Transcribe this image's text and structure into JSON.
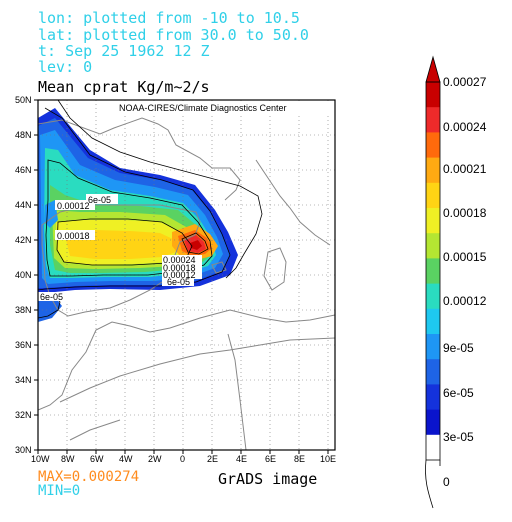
{
  "header": {
    "lon_line": "lon: plotted from -10 to 10.5",
    "lat_line": "lat: plotted from 30.0 to 50.0",
    "time_line": "t: Sep 25 1962 12 Z",
    "lev_line": "lev: 0"
  },
  "map": {
    "title": "Mean cprat Kg/m~2/s",
    "credit": "NOAA-CIRES/Climate Diagnostics Center",
    "lon_ticks": [
      "10W",
      "8W",
      "6W",
      "4W",
      "2W",
      "0",
      "2E",
      "4E",
      "6E",
      "8E",
      "10E"
    ],
    "lat_ticks": [
      "50N",
      "48N",
      "46N",
      "44N",
      "42N",
      "40N",
      "38N",
      "36N",
      "34N",
      "32N",
      "30N"
    ],
    "contour_labels": [
      "6e-05",
      "0.00012",
      "0.00018",
      "0.00024",
      "0.00018",
      "0.00012",
      "6e-05",
      "6e-05"
    ]
  },
  "colorbar": {
    "labels": [
      "0.00027",
      "0.00024",
      "0.00021",
      "0.00018",
      "0.00015",
      "0.00012",
      "9e-05",
      "6e-05",
      "3e-05",
      "0"
    ],
    "colors": [
      "#c80000",
      "#ee2a2a",
      "#ff6a0c",
      "#ffaa12",
      "#ffd414",
      "#eff024",
      "#b4e632",
      "#5ad262",
      "#2adcc0",
      "#1ec8f0",
      "#1e96f5",
      "#1e64e6",
      "#1432dc",
      "#0a14cc",
      "#ffffff"
    ]
  },
  "stats": {
    "max_label": "MAX=0.000274",
    "min_label": "MIN=0",
    "max_color": "#ff8c1e",
    "min_color": "#30d0e8"
  },
  "footer": {
    "grads_label": "GrADS image"
  }
}
